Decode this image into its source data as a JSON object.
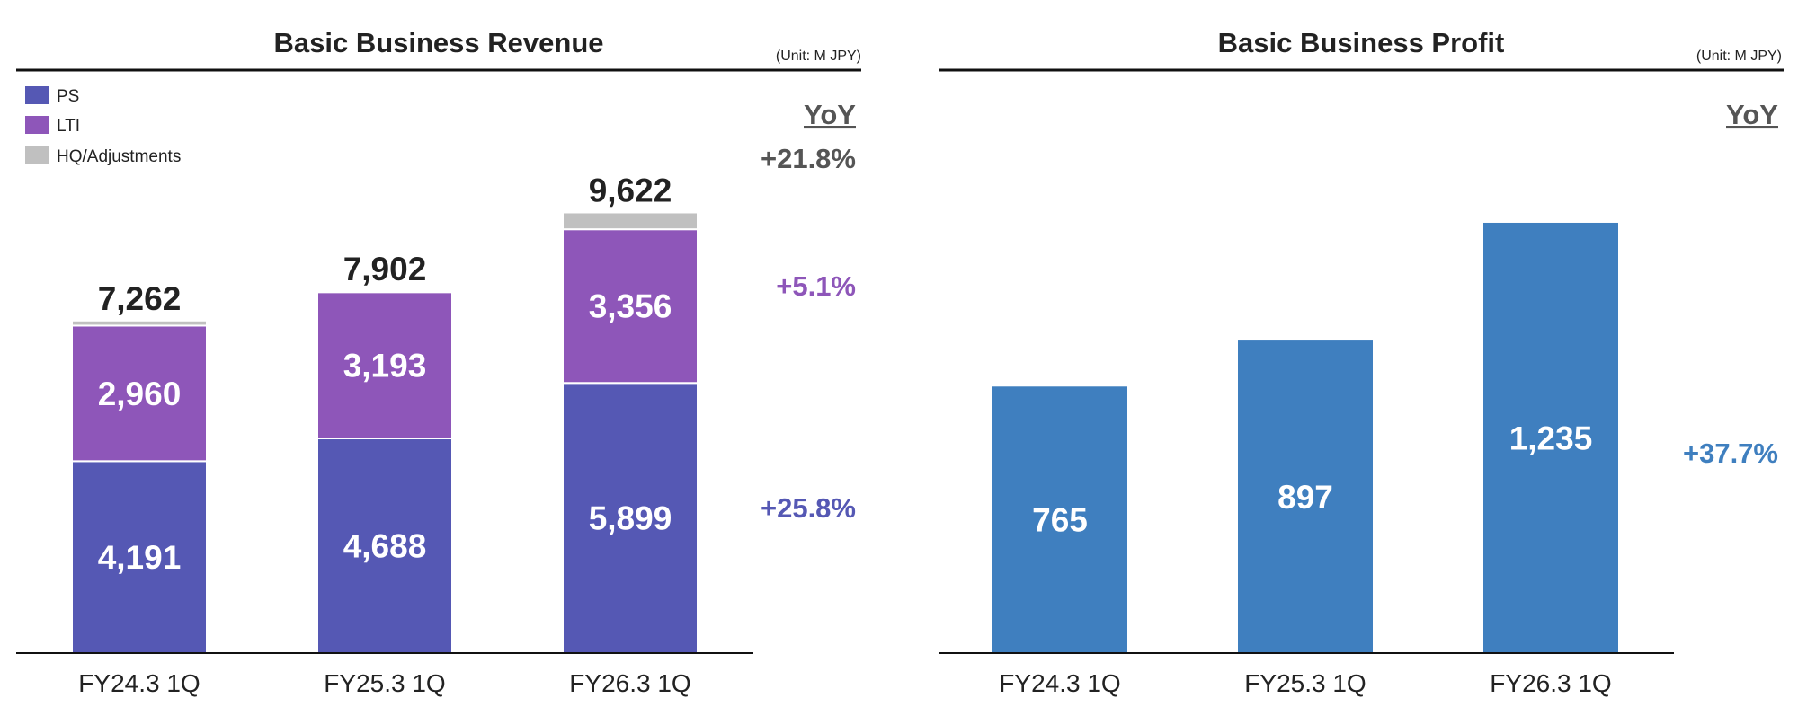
{
  "chart_data": [
    {
      "type": "bar",
      "stacked": true,
      "title": "Basic Business Revenue",
      "unit": "(Unit: M JPY)",
      "yoy_header": "YoY",
      "categories": [
        "FY24.3 1Q",
        "FY25.3 1Q",
        "FY26.3 1Q"
      ],
      "series": [
        {
          "name": "PS",
          "color": "#5558b4",
          "values": [
            4191,
            4688,
            5899
          ],
          "labels": [
            "4,191",
            "4,688",
            "5,899"
          ],
          "yoy": "+25.8%"
        },
        {
          "name": "LTI",
          "color": "#8e56b9",
          "values": [
            2960,
            3193,
            3356
          ],
          "labels": [
            "2,960",
            "3,193",
            "3,356"
          ],
          "yoy": "+5.1%"
        },
        {
          "name": "HQ/Adjustments",
          "color": "#c0c0c0",
          "values": [
            111,
            21,
            367
          ],
          "labels": [
            "",
            "",
            ""
          ]
        }
      ],
      "totals": [
        7262,
        7902,
        9622
      ],
      "total_labels": [
        "7,262",
        "7,902",
        "9,622"
      ],
      "total_yoy": "+21.8%",
      "total_yoy_color": "#555555",
      "legend_position": "top-left",
      "ylim": [
        0,
        10200
      ],
      "grid": false
    },
    {
      "type": "bar",
      "stacked": false,
      "title": "Basic Business Profit",
      "unit": "(Unit: M JPY)",
      "yoy_header": "YoY",
      "categories": [
        "FY24.3 1Q",
        "FY25.3 1Q",
        "FY26.3 1Q"
      ],
      "color": "#3f7fbf",
      "values": [
        765,
        897,
        1235
      ],
      "labels": [
        "765",
        "897",
        "1,235"
      ],
      "yoy": "+37.7%",
      "ylim": [
        0,
        1650
      ],
      "grid": false
    }
  ]
}
